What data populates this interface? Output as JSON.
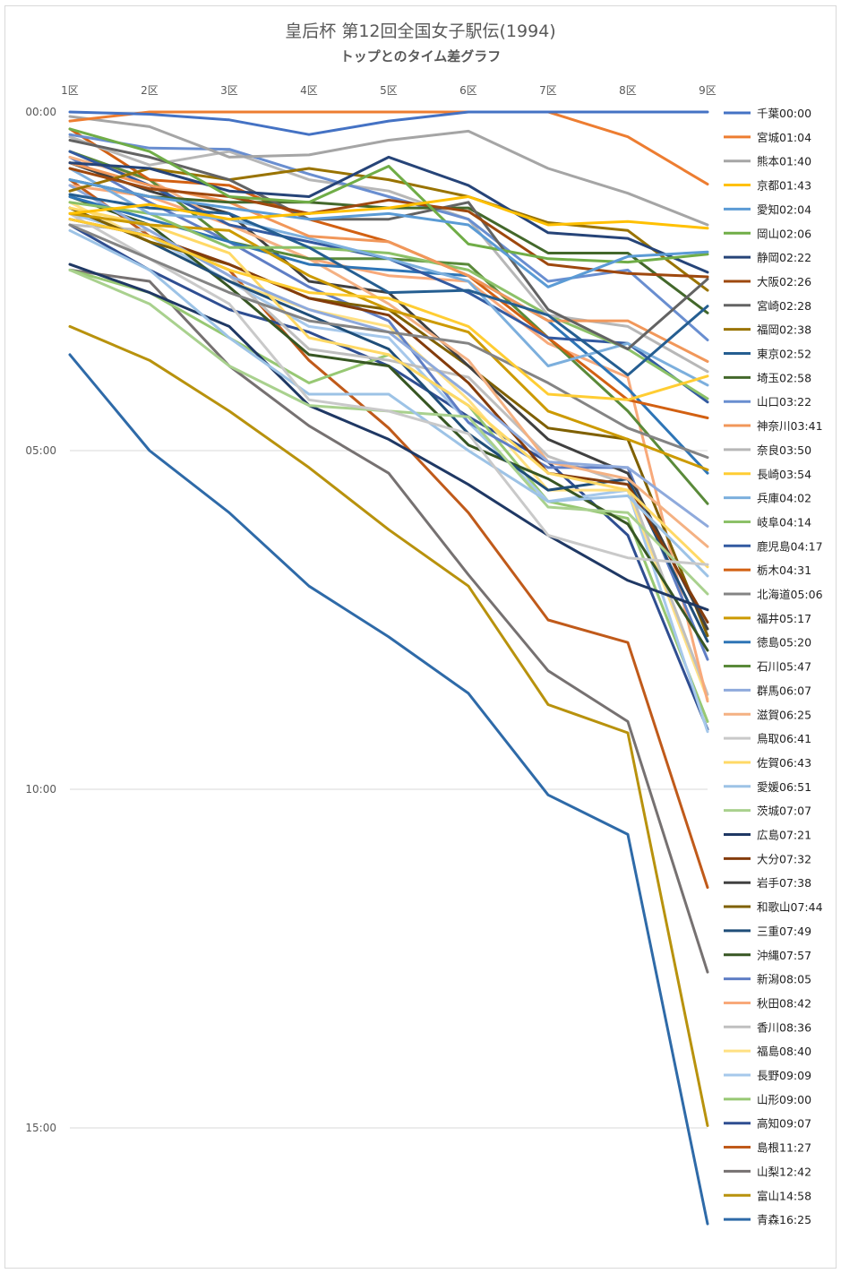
{
  "title": "皇后杯 第12回全国女子駅伝(1994)",
  "subtitle": "トップとのタイム差グラフ",
  "chart_data": {
    "type": "line",
    "categories": [
      "1区",
      "2区",
      "3区",
      "4区",
      "5区",
      "6区",
      "7区",
      "8区",
      "9区"
    ],
    "y_ticks": [
      "00:00",
      "05:00",
      "10:00",
      "15:00"
    ],
    "y_unit": "seconds behind leader",
    "ylim": [
      0,
      1000
    ],
    "y_inverted": true,
    "grid": true,
    "legend_position": "right",
    "series": [
      {
        "name": "千葉00:00",
        "color": "#4472C4",
        "values": [
          0,
          2,
          7,
          20,
          8,
          0,
          0,
          0,
          0
        ]
      },
      {
        "name": "宮城01:04",
        "color": "#ED7D31",
        "values": [
          8,
          0,
          0,
          0,
          0,
          0,
          0,
          22,
          64
        ]
      },
      {
        "name": "熊本01:40",
        "color": "#A5A5A5",
        "values": [
          4,
          13,
          40,
          38,
          25,
          17,
          50,
          72,
          100
        ]
      },
      {
        "name": "京都01:43",
        "color": "#FFC000",
        "values": [
          90,
          82,
          95,
          90,
          85,
          75,
          100,
          97,
          103
        ]
      },
      {
        "name": "愛知02:04",
        "color": "#5B9BD5",
        "values": [
          60,
          75,
          85,
          95,
          90,
          100,
          155,
          128,
          124
        ]
      },
      {
        "name": "岡山02:06",
        "color": "#70AD47",
        "values": [
          15,
          35,
          75,
          80,
          48,
          117,
          130,
          133,
          126
        ]
      },
      {
        "name": "静岡02:22",
        "color": "#264478",
        "values": [
          45,
          50,
          70,
          75,
          40,
          65,
          107,
          112,
          142
        ]
      },
      {
        "name": "大阪02:26",
        "color": "#9E480E",
        "values": [
          50,
          68,
          75,
          90,
          78,
          88,
          135,
          143,
          146
        ]
      },
      {
        "name": "宮崎02:28",
        "color": "#636363",
        "values": [
          25,
          40,
          60,
          95,
          95,
          80,
          175,
          210,
          148
        ]
      },
      {
        "name": "福岡02:38",
        "color": "#997300",
        "values": [
          70,
          50,
          60,
          50,
          60,
          75,
          98,
          105,
          158
        ]
      },
      {
        "name": "東京02:52",
        "color": "#255E91",
        "values": [
          73,
          85,
          90,
          120,
          160,
          158,
          180,
          233,
          172
        ]
      },
      {
        "name": "埼玉02:58",
        "color": "#43682B",
        "values": [
          60,
          75,
          80,
          80,
          85,
          85,
          125,
          125,
          178
        ]
      },
      {
        "name": "山口03:22",
        "color": "#698ED0",
        "values": [
          20,
          32,
          33,
          55,
          75,
          95,
          150,
          140,
          202
        ]
      },
      {
        "name": "神奈川03:41",
        "color": "#F1975A",
        "values": [
          45,
          65,
          80,
          110,
          115,
          145,
          185,
          185,
          221
        ]
      },
      {
        "name": "奈良03:50",
        "color": "#B7B7B7",
        "values": [
          22,
          47,
          35,
          60,
          70,
          95,
          180,
          190,
          230
        ]
      },
      {
        "name": "長崎03:54",
        "color": "#FFCD33",
        "values": [
          95,
          110,
          140,
          160,
          165,
          190,
          250,
          255,
          234
        ]
      },
      {
        "name": "兵庫04:02",
        "color": "#7CAFDD",
        "values": [
          50,
          90,
          95,
          112,
          130,
          150,
          225,
          205,
          242
        ]
      },
      {
        "name": "岐阜04:14",
        "color": "#8CC168",
        "values": [
          80,
          90,
          120,
          120,
          125,
          140,
          180,
          210,
          254
        ]
      },
      {
        "name": "鹿児島04:17",
        "color": "#335AA1",
        "values": [
          35,
          65,
          100,
          115,
          130,
          160,
          200,
          205,
          257
        ]
      },
      {
        "name": "栃木04:31",
        "color": "#D26012",
        "values": [
          15,
          60,
          65,
          95,
          115,
          145,
          200,
          255,
          271
        ]
      },
      {
        "name": "北海道05:06",
        "color": "#848484",
        "values": [
          100,
          130,
          160,
          185,
          195,
          205,
          240,
          280,
          306
        ]
      },
      {
        "name": "福井05:17",
        "color": "#CC9A00",
        "values": [
          90,
          100,
          105,
          145,
          175,
          195,
          265,
          290,
          317
        ]
      },
      {
        "name": "徳島05:20",
        "color": "#2E75B6",
        "values": [
          75,
          95,
          115,
          135,
          140,
          145,
          185,
          245,
          320
        ]
      },
      {
        "name": "石川05:47",
        "color": "#5A8A3A",
        "values": [
          35,
          60,
          115,
          130,
          130,
          135,
          200,
          265,
          347
        ]
      },
      {
        "name": "群馬06:07",
        "color": "#8FAADC",
        "values": [
          65,
          105,
          145,
          175,
          195,
          250,
          310,
          315,
          367
        ]
      },
      {
        "name": "滋賀06:25",
        "color": "#F4B183",
        "values": [
          40,
          60,
          100,
          130,
          170,
          220,
          310,
          325,
          385
        ]
      },
      {
        "name": "鳥取06:41",
        "color": "#C9C9C9",
        "values": [
          90,
          130,
          170,
          255,
          265,
          285,
          375,
          395,
          401
        ]
      },
      {
        "name": "佐賀06:43",
        "color": "#FFD966",
        "values": [
          85,
          100,
          125,
          200,
          215,
          260,
          320,
          335,
          403
        ]
      },
      {
        "name": "愛媛06:51",
        "color": "#9DC3E6",
        "values": [
          105,
          140,
          200,
          250,
          250,
          300,
          345,
          340,
          411
        ]
      },
      {
        "name": "茨城07:07",
        "color": "#A9D18E",
        "values": [
          140,
          170,
          225,
          260,
          265,
          270,
          350,
          355,
          427
        ]
      },
      {
        "name": "広島07:21",
        "color": "#1F3864",
        "values": [
          135,
          160,
          190,
          260,
          290,
          330,
          375,
          415,
          441
        ]
      },
      {
        "name": "大分07:32",
        "color": "#843C0C",
        "values": [
          95,
          110,
          135,
          165,
          180,
          240,
          320,
          330,
          452
        ]
      },
      {
        "name": "岩手07:38",
        "color": "#404040",
        "values": [
          45,
          70,
          90,
          150,
          160,
          225,
          290,
          320,
          458
        ]
      },
      {
        "name": "和歌山07:44",
        "color": "#7F6000",
        "values": [
          85,
          115,
          135,
          165,
          175,
          225,
          280,
          290,
          464
        ]
      },
      {
        "name": "三重07:49",
        "color": "#1F4E79",
        "values": [
          85,
          115,
          150,
          180,
          210,
          285,
          335,
          325,
          469
        ]
      },
      {
        "name": "沖縄07:57",
        "color": "#375623",
        "values": [
          75,
          100,
          155,
          215,
          225,
          295,
          325,
          365,
          477
        ]
      },
      {
        "name": "新潟08:05",
        "color": "#5F7EC5",
        "values": [
          40,
          80,
          115,
          155,
          185,
          275,
          315,
          315,
          485
        ]
      },
      {
        "name": "秋田08:42",
        "color": "#F8A97A",
        "values": [
          65,
          75,
          100,
          130,
          145,
          150,
          205,
          235,
          522
        ]
      },
      {
        "name": "香川08:36",
        "color": "#BFBFBF",
        "values": [
          100,
          105,
          145,
          210,
          220,
          235,
          305,
          330,
          516
        ]
      },
      {
        "name": "福島08:40",
        "color": "#FFE083",
        "values": [
          80,
          115,
          150,
          175,
          190,
          255,
          335,
          335,
          520
        ]
      },
      {
        "name": "長野09:09",
        "color": "#A6C8EB",
        "values": [
          90,
          110,
          150,
          190,
          200,
          275,
          345,
          335,
          549
        ]
      },
      {
        "name": "山形09:00",
        "color": "#97C873",
        "values": [
          140,
          160,
          200,
          240,
          215,
          260,
          345,
          360,
          540
        ]
      },
      {
        "name": "高知09:07",
        "color": "#2F4E91",
        "values": [
          100,
          140,
          175,
          195,
          225,
          270,
          310,
          375,
          547
        ]
      },
      {
        "name": "島根11:27",
        "color": "#C05A1A",
        "values": [
          60,
          110,
          140,
          220,
          280,
          355,
          450,
          470,
          687
        ]
      },
      {
        "name": "山梨12:42",
        "color": "#767171",
        "values": [
          140,
          150,
          225,
          278,
          320,
          410,
          495,
          540,
          762
        ]
      },
      {
        "name": "富山14:58",
        "color": "#B8920D",
        "values": [
          190,
          220,
          265,
          315,
          370,
          420,
          525,
          550,
          898
        ]
      },
      {
        "name": "青森16:25",
        "color": "#2E6AA8",
        "values": [
          215,
          300,
          355,
          420,
          465,
          515,
          605,
          640,
          985
        ]
      }
    ]
  }
}
